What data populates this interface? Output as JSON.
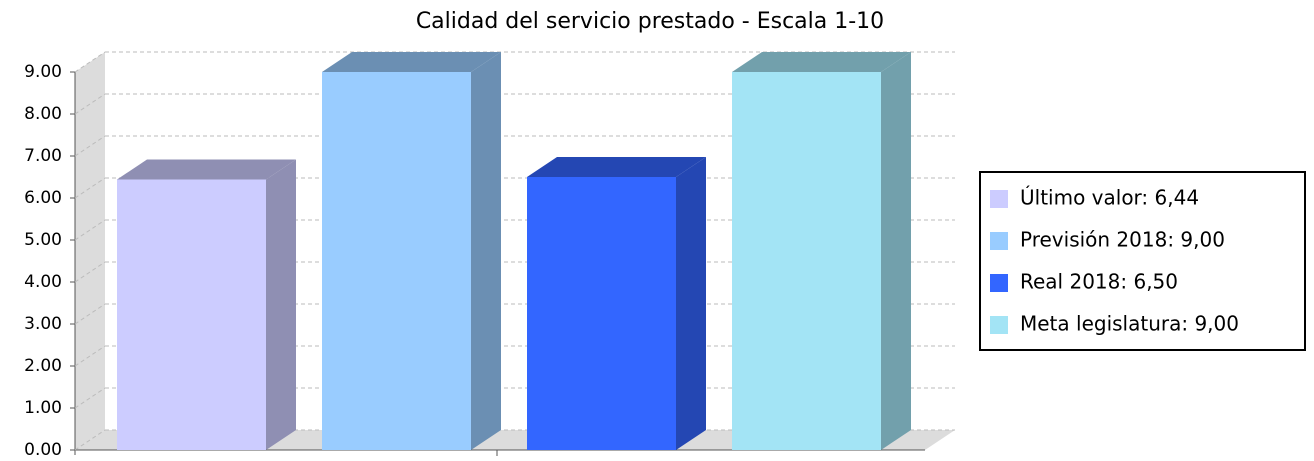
{
  "chart_data": {
    "type": "bar3d",
    "title": "Calidad del servicio prestado - Escala 1-10",
    "series": [
      {
        "name": "Último valor: 6,44",
        "color": "#ccccff",
        "values": [
          6.44
        ]
      },
      {
        "name": "Previsión 2018: 9,00",
        "color": "#99ccff",
        "values": [
          9.0
        ]
      },
      {
        "name": "Real 2018: 6,50",
        "color": "#3366ff",
        "values": [
          6.5
        ]
      },
      {
        "name": "Meta legislatura: 9,00",
        "color": "#a3e4f5",
        "values": [
          9.0
        ]
      }
    ],
    "ylim": [
      0,
      9
    ],
    "yticks": [
      {
        "value": 0,
        "label": "0.00"
      },
      {
        "value": 1,
        "label": "1.00"
      },
      {
        "value": 2,
        "label": "2.00"
      },
      {
        "value": 3,
        "label": "3.00"
      },
      {
        "value": 4,
        "label": "4.00"
      },
      {
        "value": 5,
        "label": "5.00"
      },
      {
        "value": 6,
        "label": "6.00"
      },
      {
        "value": 7,
        "label": "7.00"
      },
      {
        "value": 8,
        "label": "8.00"
      },
      {
        "value": 9,
        "label": "9.00"
      }
    ],
    "grid": true,
    "legend": "right"
  }
}
